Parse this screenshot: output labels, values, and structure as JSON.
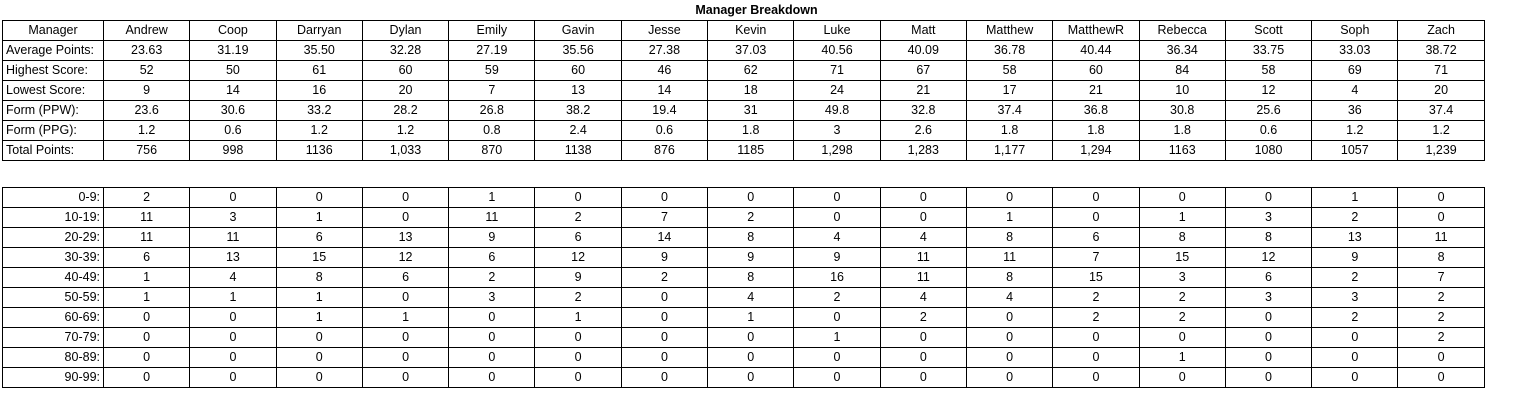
{
  "title": "Manager Breakdown",
  "header_label": "Manager",
  "managers": [
    "Andrew",
    "Coop",
    "Darryan",
    "Dylan",
    "Emily",
    "Gavin",
    "Jesse",
    "Kevin",
    "Luke",
    "Matt",
    "Matthew",
    "MatthewR",
    "Rebecca",
    "Scott",
    "Soph",
    "Zach"
  ],
  "stats": [
    {
      "label": "Average Points:",
      "values": [
        "23.63",
        "31.19",
        "35.50",
        "32.28",
        "27.19",
        "35.56",
        "27.38",
        "37.03",
        "40.56",
        "40.09",
        "36.78",
        "40.44",
        "36.34",
        "33.75",
        "33.03",
        "38.72"
      ]
    },
    {
      "label": "Highest Score:",
      "values": [
        "52",
        "50",
        "61",
        "60",
        "59",
        "60",
        "46",
        "62",
        "71",
        "67",
        "58",
        "60",
        "84",
        "58",
        "69",
        "71"
      ]
    },
    {
      "label": "Lowest Score:",
      "values": [
        "9",
        "14",
        "16",
        "20",
        "7",
        "13",
        "14",
        "18",
        "24",
        "21",
        "17",
        "21",
        "10",
        "12",
        "4",
        "20"
      ]
    },
    {
      "label": "Form (PPW):",
      "values": [
        "23.6",
        "30.6",
        "33.2",
        "28.2",
        "26.8",
        "38.2",
        "19.4",
        "31",
        "49.8",
        "32.8",
        "37.4",
        "36.8",
        "30.8",
        "25.6",
        "36",
        "37.4"
      ]
    },
    {
      "label": "Form (PPG):",
      "values": [
        "1.2",
        "0.6",
        "1.2",
        "1.2",
        "0.8",
        "2.4",
        "0.6",
        "1.8",
        "3",
        "2.6",
        "1.8",
        "1.8",
        "1.8",
        "0.6",
        "1.2",
        "1.2"
      ]
    },
    {
      "label": "Total Points:",
      "values": [
        "756",
        "998",
        "1136",
        "1,033",
        "870",
        "1138",
        "876",
        "1185",
        "1,298",
        "1,283",
        "1,177",
        "1,294",
        "1163",
        "1080",
        "1057",
        "1,239"
      ]
    }
  ],
  "distribution": [
    {
      "label": "0-9:",
      "values": [
        "2",
        "0",
        "0",
        "0",
        "1",
        "0",
        "0",
        "0",
        "0",
        "0",
        "0",
        "0",
        "0",
        "0",
        "1",
        "0"
      ]
    },
    {
      "label": "10-19:",
      "values": [
        "11",
        "3",
        "1",
        "0",
        "11",
        "2",
        "7",
        "2",
        "0",
        "0",
        "1",
        "0",
        "1",
        "3",
        "2",
        "0"
      ]
    },
    {
      "label": "20-29:",
      "values": [
        "11",
        "11",
        "6",
        "13",
        "9",
        "6",
        "14",
        "8",
        "4",
        "4",
        "8",
        "6",
        "8",
        "8",
        "13",
        "11"
      ]
    },
    {
      "label": "30-39:",
      "values": [
        "6",
        "13",
        "15",
        "12",
        "6",
        "12",
        "9",
        "9",
        "9",
        "11",
        "11",
        "7",
        "15",
        "12",
        "9",
        "8"
      ]
    },
    {
      "label": "40-49:",
      "values": [
        "1",
        "4",
        "8",
        "6",
        "2",
        "9",
        "2",
        "8",
        "16",
        "11",
        "8",
        "15",
        "3",
        "6",
        "2",
        "7"
      ]
    },
    {
      "label": "50-59:",
      "values": [
        "1",
        "1",
        "1",
        "0",
        "3",
        "2",
        "0",
        "4",
        "2",
        "4",
        "4",
        "2",
        "2",
        "3",
        "3",
        "2"
      ]
    },
    {
      "label": "60-69:",
      "values": [
        "0",
        "0",
        "1",
        "1",
        "0",
        "1",
        "0",
        "1",
        "0",
        "2",
        "0",
        "2",
        "2",
        "0",
        "2",
        "2"
      ]
    },
    {
      "label": "70-79:",
      "values": [
        "0",
        "0",
        "0",
        "0",
        "0",
        "0",
        "0",
        "0",
        "1",
        "0",
        "0",
        "0",
        "0",
        "0",
        "0",
        "2"
      ]
    },
    {
      "label": "80-89:",
      "values": [
        "0",
        "0",
        "0",
        "0",
        "0",
        "0",
        "0",
        "0",
        "0",
        "0",
        "0",
        "0",
        "1",
        "0",
        "0",
        "0"
      ]
    },
    {
      "label": "90-99:",
      "values": [
        "0",
        "0",
        "0",
        "0",
        "0",
        "0",
        "0",
        "0",
        "0",
        "0",
        "0",
        "0",
        "0",
        "0",
        "0",
        "0"
      ]
    }
  ]
}
